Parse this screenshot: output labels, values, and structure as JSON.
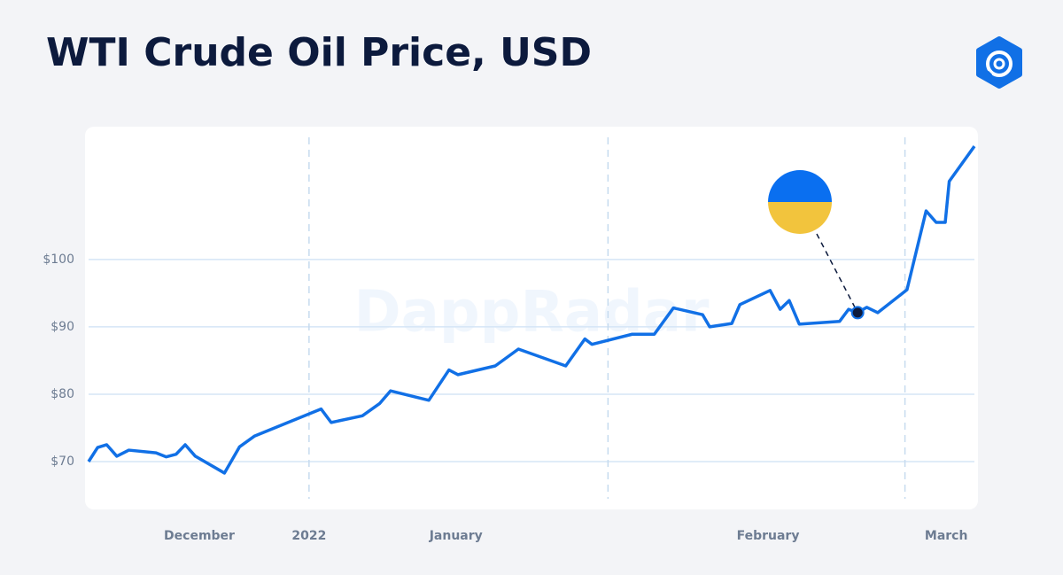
{
  "chart_data": {
    "type": "line",
    "title": "WTI Crude Oil Price, USD",
    "watermark": "DappRadar",
    "x": [
      0,
      0.9,
      1.8,
      2.8,
      4.0,
      6.7,
      7.7,
      8.7,
      9.6,
      10.6,
      13.5,
      15.0,
      16.5,
      23.1,
      24.1,
      27.2,
      28.9,
      30.0,
      33.8,
      35.8,
      36.7,
      40.4,
      42.7,
      47.4,
      49.3,
      50.0,
      54.0,
      56.2,
      58.1,
      61.0,
      61.7,
      63.9,
      64.7,
      67.7,
      68.7,
      69.6,
      70.6,
      74.6,
      75.5,
      76.4,
      77.3,
      78.4,
      81.3,
      83.2,
      84.2,
      85.1,
      85.5,
      88.0
    ],
    "series": [
      {
        "color": "#1170e6",
        "values": [
          70.0,
          72.1,
          72.5,
          70.8,
          71.7,
          71.3,
          70.7,
          71.1,
          72.5,
          70.8,
          68.3,
          72.2,
          73.8,
          77.8,
          75.8,
          76.8,
          78.6,
          80.5,
          79.1,
          83.6,
          82.9,
          84.2,
          86.7,
          84.2,
          88.2,
          87.4,
          88.9,
          88.9,
          92.8,
          91.8,
          90.0,
          90.5,
          93.3,
          95.4,
          92.6,
          93.9,
          90.4,
          90.8,
          92.6,
          92.1,
          92.9,
          92.1,
          95.5,
          107.2,
          105.5,
          105.5,
          111.6,
          116.8
        ]
      }
    ],
    "xlim": [
      0,
      88
    ],
    "ylim": [
      62.9,
      119.7
    ],
    "xticks": [
      {
        "value": 11,
        "label": "December"
      },
      {
        "value": 21.9,
        "label": "2022"
      },
      {
        "value": 36.5,
        "label": "January"
      },
      {
        "value": 67.5,
        "label": "February"
      },
      {
        "value": 85.2,
        "label": "March"
      }
    ],
    "yticks": [
      {
        "value": 70,
        "label": "$70"
      },
      {
        "value": 80,
        "label": "$80"
      },
      {
        "value": 90,
        "label": "$90"
      },
      {
        "value": 100,
        "label": "$100"
      }
    ],
    "x_gridlines": [
      21.9,
      51.6,
      81.1
    ],
    "grid": true,
    "highlight_index": 39
  }
}
